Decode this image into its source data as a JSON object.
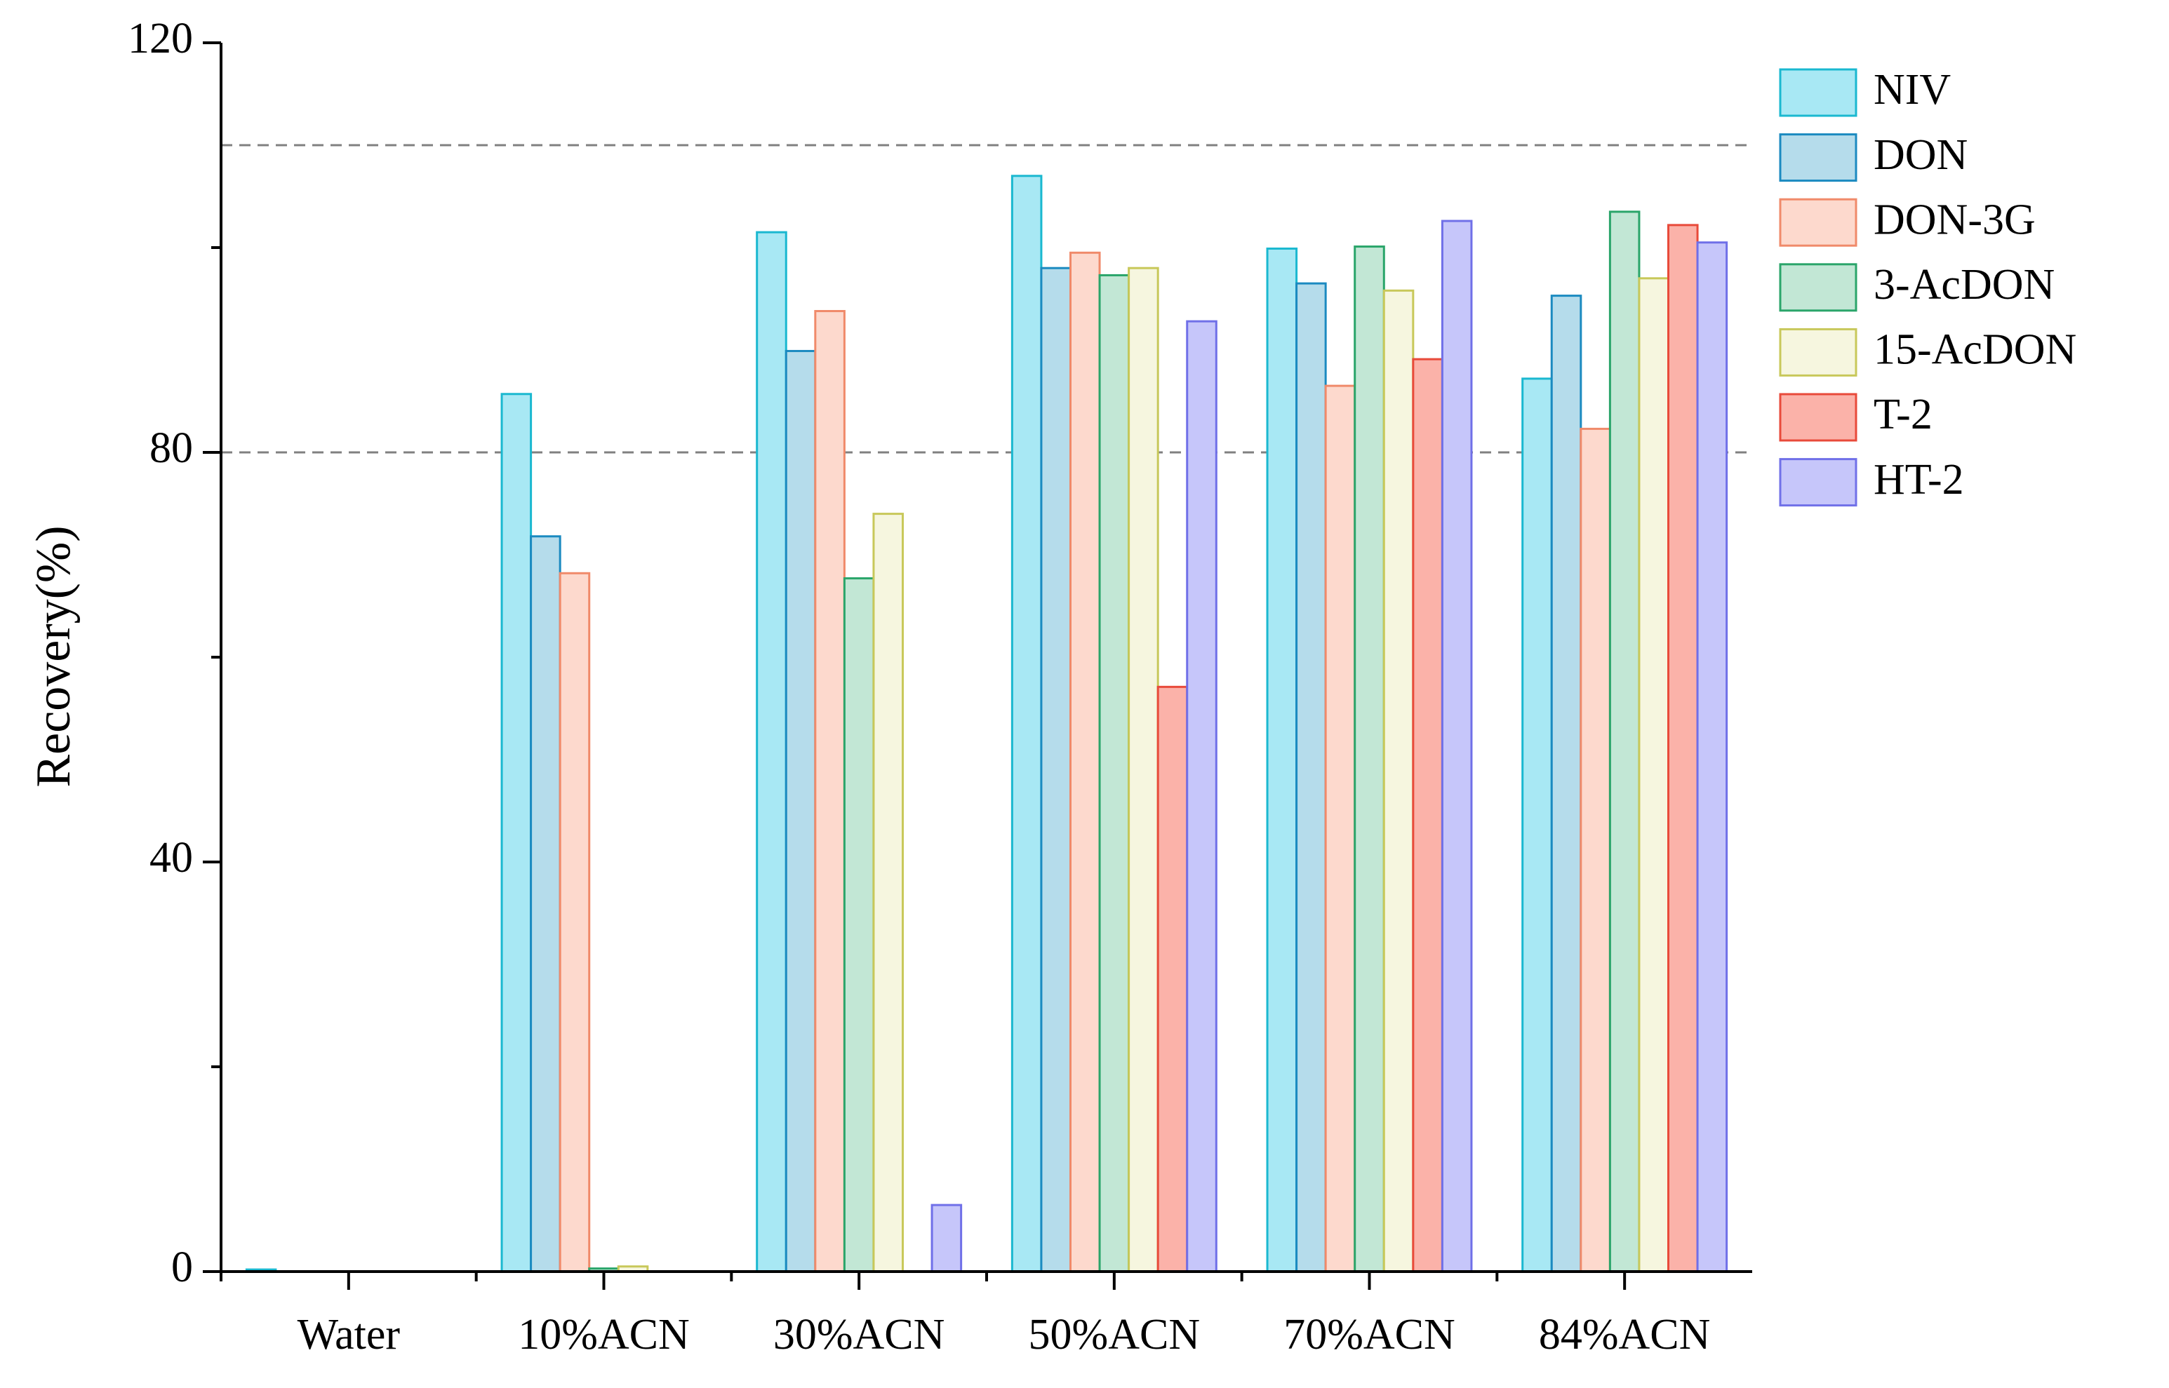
{
  "chart_data": {
    "type": "bar",
    "y_label": "Recovery(%)",
    "categories": [
      "Water",
      "10%ACN",
      "30%ACN",
      "50%ACN",
      "70%ACN",
      "84%ACN"
    ],
    "series": [
      {
        "name": "NIV",
        "color": "#a8e8f4",
        "edge_color": "#1ab8d0",
        "values": [
          0.2,
          85.7,
          101.5,
          107.0,
          99.9,
          87.2
        ]
      },
      {
        "name": "DON",
        "color": "#b5dceb",
        "edge_color": "#1b8ac0",
        "values": [
          0,
          71.8,
          89.9,
          98.0,
          96.5,
          95.3
        ]
      },
      {
        "name": "DON-3G",
        "color": "#fdd9cd",
        "edge_color": "#f08a6a",
        "values": [
          0,
          68.2,
          93.8,
          99.5,
          86.5,
          82.3
        ]
      },
      {
        "name": "3-AcDON",
        "color": "#c2e7d5",
        "edge_color": "#2aa56a",
        "values": [
          0,
          0.3,
          67.7,
          97.3,
          100.1,
          103.5
        ]
      },
      {
        "name": "15-AcDON",
        "color": "#f6f6df",
        "edge_color": "#c8c85a",
        "values": [
          0,
          0.5,
          74.0,
          98.0,
          95.8,
          97.0
        ]
      },
      {
        "name": "T-2",
        "color": "#fbb2a9",
        "edge_color": "#e84a3a",
        "values": [
          0,
          0,
          0,
          57.1,
          89.1,
          102.2
        ]
      },
      {
        "name": "HT-2",
        "color": "#c6c6fa",
        "edge_color": "#7070e8",
        "values": [
          0,
          0,
          6.5,
          92.8,
          102.6,
          100.5
        ]
      }
    ],
    "ylim": [
      0,
      120
    ],
    "yticks": [
      0,
      40,
      80,
      120
    ],
    "minor_yticks": [
      20,
      60,
      100
    ],
    "reference_lines": [
      80,
      110
    ],
    "reference_color": "#808080",
    "legend": "upper right outside"
  }
}
